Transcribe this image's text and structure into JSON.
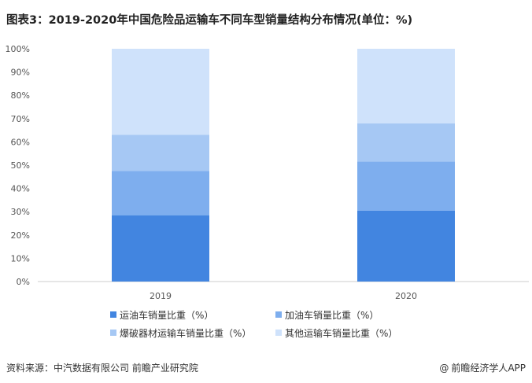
{
  "title": "图表3：2019-2020年中国危险品运输车不同车型销量结构分布情况(单位：%)",
  "source": "资料来源：中汽数据有限公司 前瞻产业研究院",
  "brand": "前瞻经济学人APP",
  "chart_data": {
    "type": "bar",
    "stacked": true,
    "categories": [
      "2019",
      "2020"
    ],
    "series": [
      {
        "name": "运油车销量比重（%）",
        "values": [
          28.5,
          30.5
        ],
        "color": "#4285e0"
      },
      {
        "name": "加油车销量比重（%）",
        "values": [
          19,
          21
        ],
        "color": "#7eaeee"
      },
      {
        "name": "爆破器材运输车销量比重（%）",
        "values": [
          15.5,
          16.5
        ],
        "color": "#a6c8f4"
      },
      {
        "name": "其他运输车销量比重（%）",
        "values": [
          37,
          32
        ],
        "color": "#cfe2fb"
      }
    ],
    "yticks": [
      "0%",
      "10%",
      "20%",
      "30%",
      "40%",
      "50%",
      "60%",
      "70%",
      "80%",
      "90%",
      "100%"
    ],
    "ylim": [
      0,
      100
    ],
    "grid": false,
    "legend_position": "bottom"
  }
}
